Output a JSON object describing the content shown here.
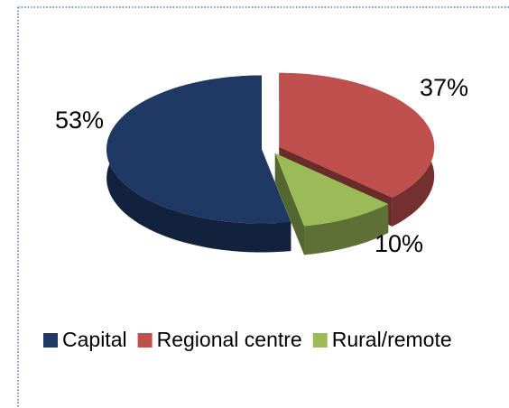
{
  "chart_data": {
    "type": "pie3d",
    "categories": [
      "Capital",
      "Regional centre",
      "Rural/remote"
    ],
    "values": [
      53,
      37,
      10
    ],
    "value_labels": [
      "53%",
      "37%",
      "10%"
    ],
    "colors": [
      "#1f3864",
      "#c0504d",
      "#9bbb59"
    ],
    "legend": "bottom"
  }
}
